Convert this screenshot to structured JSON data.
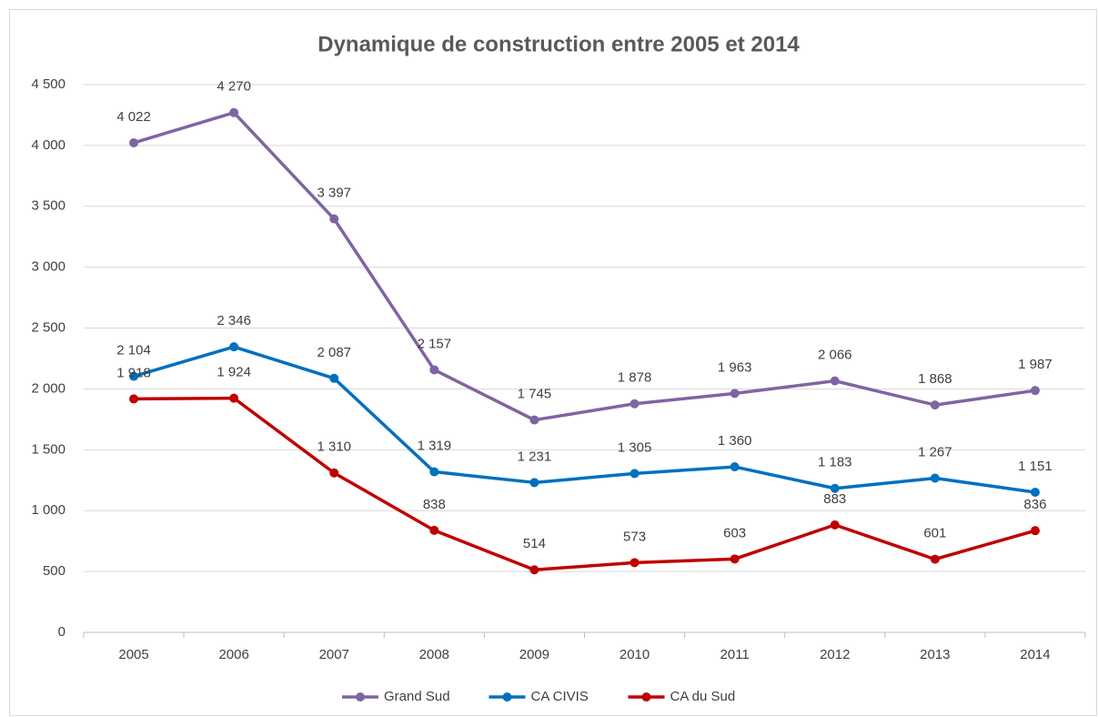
{
  "chart_data": {
    "type": "line",
    "title": "Dynamique de construction entre 2005 et 2014",
    "categories": [
      "2005",
      "2006",
      "2007",
      "2008",
      "2009",
      "2010",
      "2011",
      "2012",
      "2013",
      "2014"
    ],
    "series": [
      {
        "name": "Grand Sud",
        "color": "#8064a2",
        "values": [
          4022,
          4270,
          3397,
          2157,
          1745,
          1878,
          1963,
          2066,
          1868,
          1987
        ],
        "value_labels": [
          "4 022",
          "4 270",
          "3 397",
          "2 157",
          "1 745",
          "1 878",
          "1 963",
          "2 066",
          "1 868",
          "1 987"
        ]
      },
      {
        "name": "CA CIVIS",
        "color": "#0070c0",
        "values": [
          2104,
          2346,
          2087,
          1319,
          1231,
          1305,
          1360,
          1183,
          1267,
          1151
        ],
        "value_labels": [
          "2 104",
          "2 346",
          "2 087",
          "1 319",
          "1 231",
          "1 305",
          "1 360",
          "1 183",
          "1 267",
          "1 151"
        ]
      },
      {
        "name": "CA du Sud",
        "color": "#c00000",
        "values": [
          1918,
          1924,
          1310,
          838,
          514,
          573,
          603,
          883,
          601,
          836
        ],
        "value_labels": [
          "1 918",
          "1 924",
          "1 310",
          "838",
          "514",
          "573",
          "603",
          "883",
          "601",
          "836"
        ]
      }
    ],
    "ylim": [
      0,
      4500
    ],
    "yticks": [
      0,
      500,
      {
        "value": 1000,
        "label": "1 000"
      },
      {
        "value": 1500,
        "label": "1 500"
      },
      {
        "value": 2000,
        "label": "2 000"
      },
      {
        "value": 2500,
        "label": "2 500"
      },
      {
        "value": 3000,
        "label": "3 000"
      },
      {
        "value": 3500,
        "label": "3 500"
      },
      {
        "value": 4000,
        "label": "4 000"
      },
      {
        "value": 4500,
        "label": "4 500"
      }
    ],
    "grid": true,
    "legend": "bottom"
  }
}
